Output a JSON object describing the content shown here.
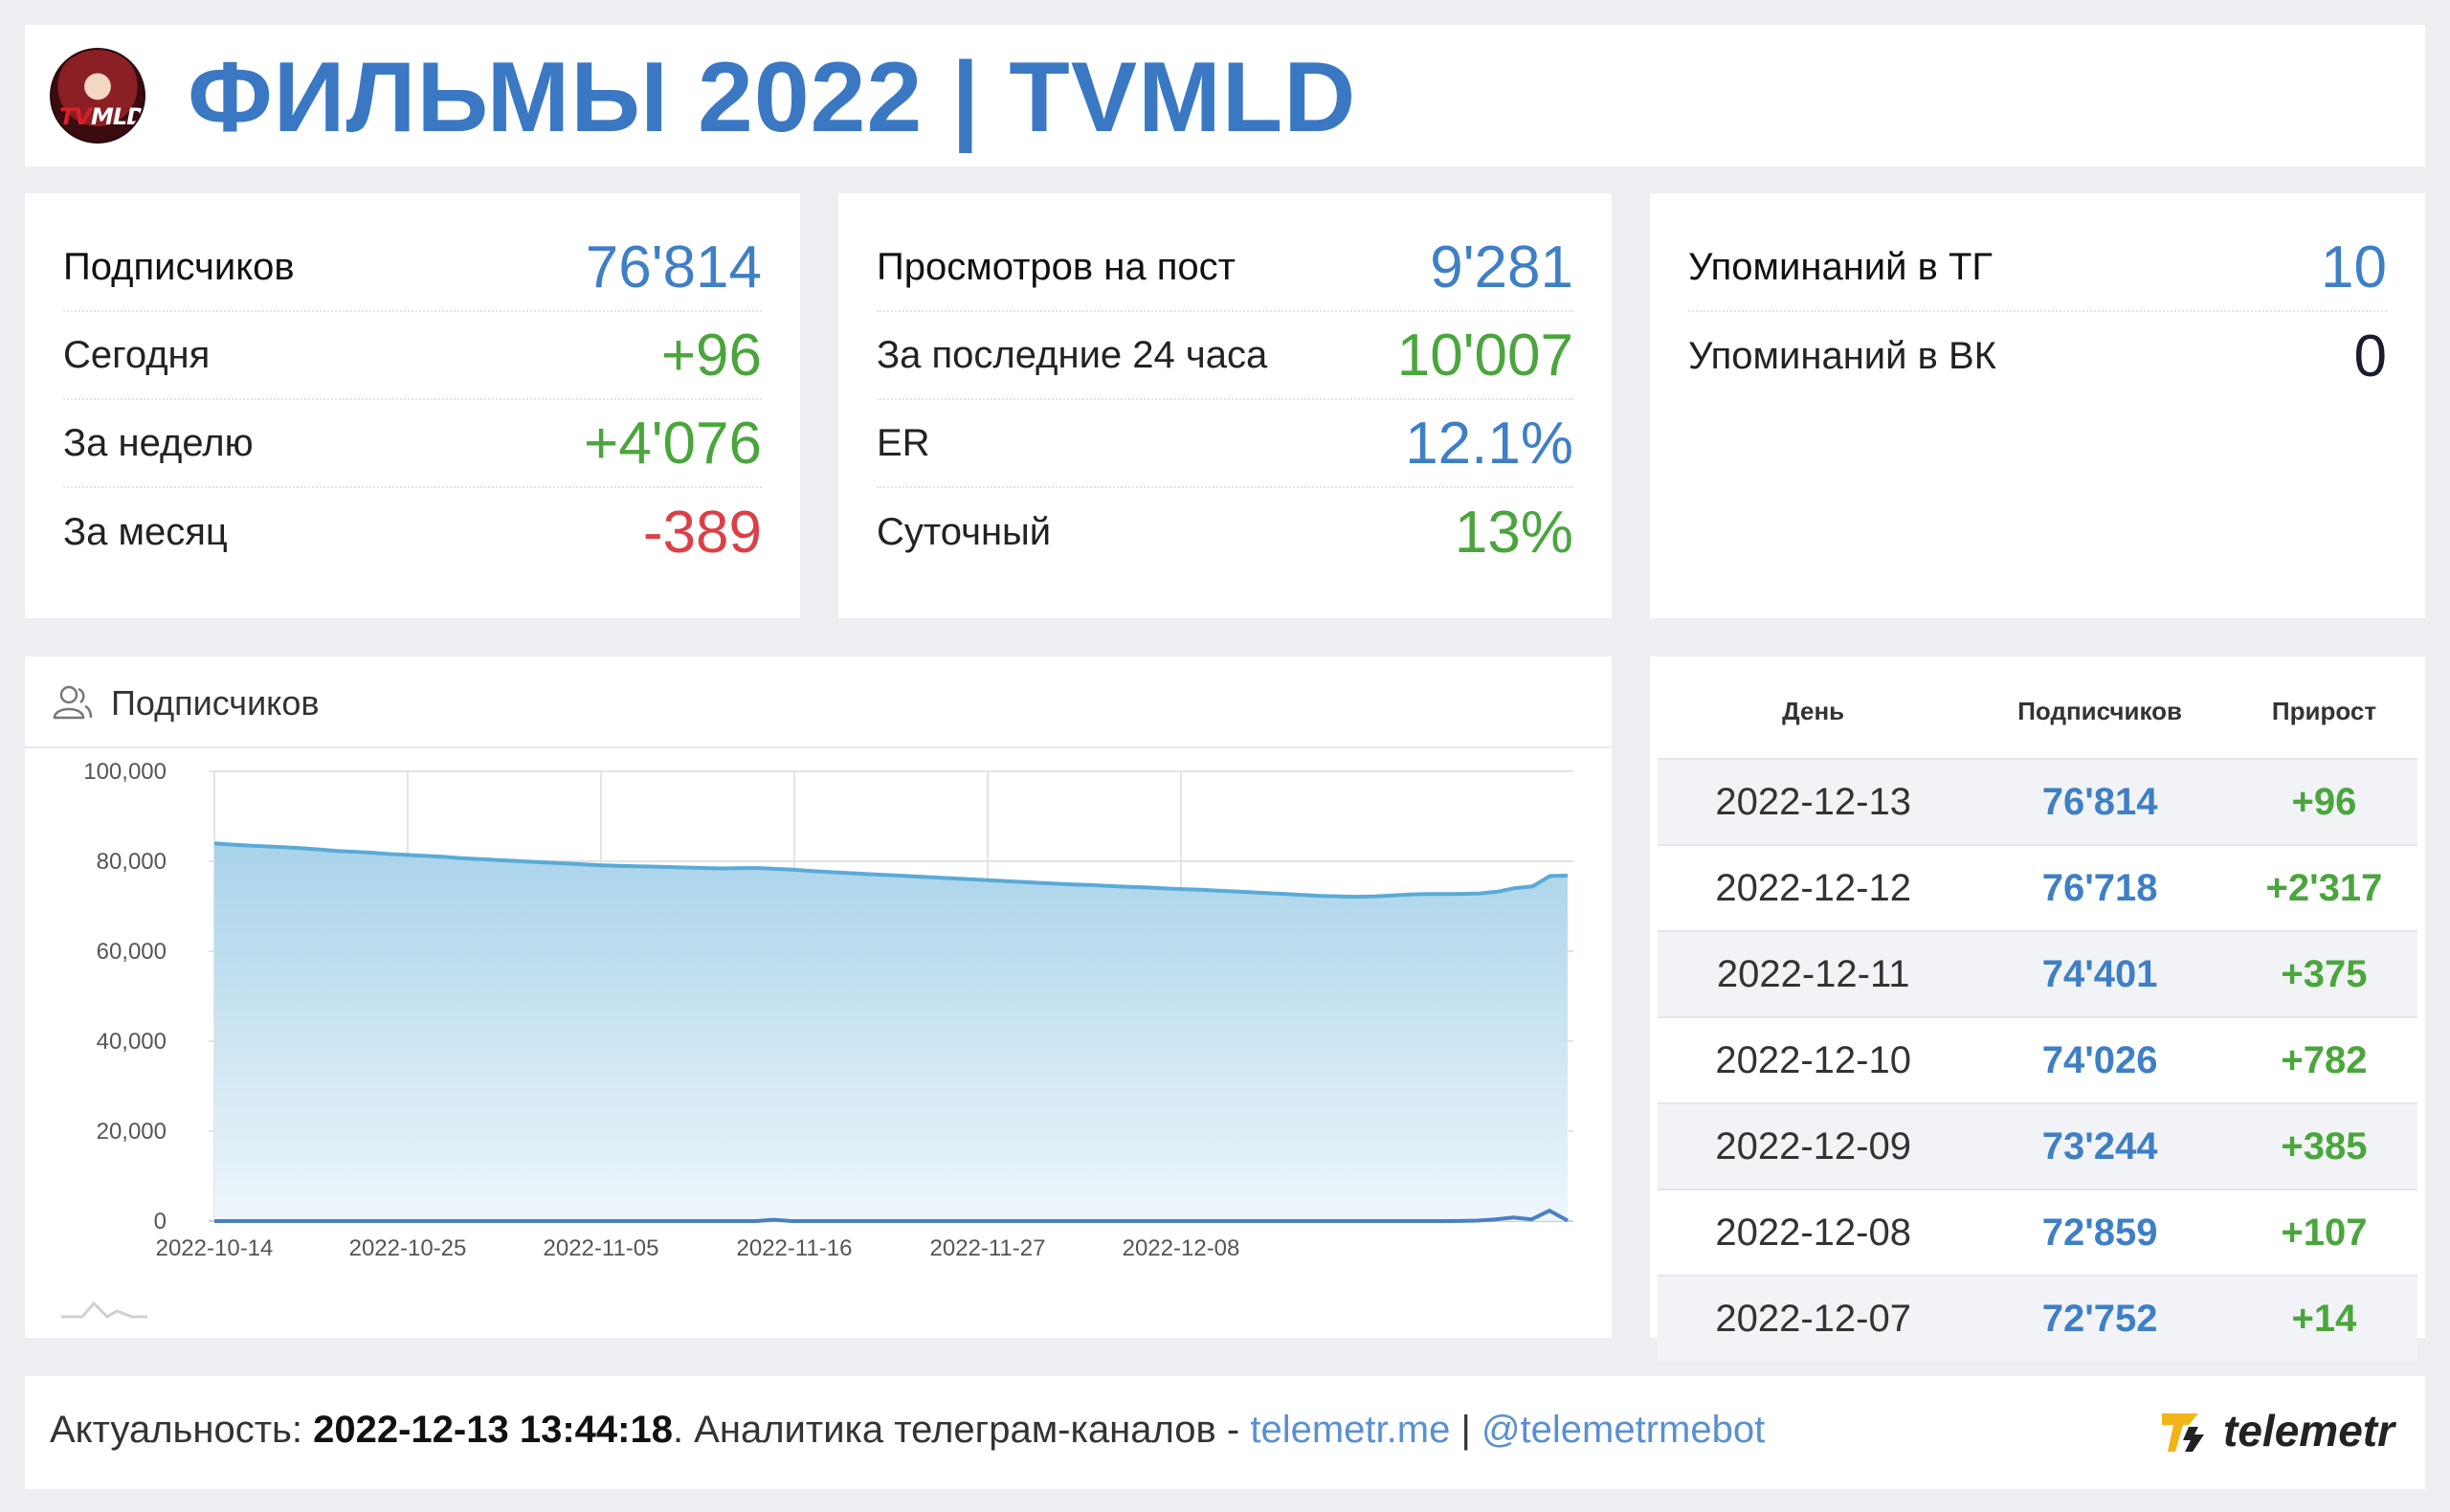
{
  "header": {
    "title": "ФИЛЬМЫ 2022 | TVMLD",
    "avatar_text_a": "TV",
    "avatar_text_b": "MLD"
  },
  "stats": {
    "subscribers": {
      "label": "Подписчиков",
      "value": "76'814",
      "rows": [
        {
          "label": "Сегодня",
          "value": "+96",
          "tone": "green"
        },
        {
          "label": "За неделю",
          "value": "+4'076",
          "tone": "green"
        },
        {
          "label": "За месяц",
          "value": "-389",
          "tone": "red"
        }
      ]
    },
    "views": {
      "label": "Просмотров на пост",
      "value": "9'281",
      "rows": [
        {
          "label": "За последние 24 часа",
          "value": "10'007",
          "tone": "green"
        },
        {
          "label": "ER",
          "value": "12.1%",
          "tone": "blue"
        },
        {
          "label": "Суточный",
          "value": "13%",
          "tone": "green"
        }
      ]
    },
    "mentions": {
      "tg_label": "Упоминаний в ТГ",
      "tg_value": "10",
      "vk_label": "Упоминаний в ВК",
      "vk_value": "0"
    }
  },
  "chart": {
    "title": "Подписчиков",
    "icon": "users-icon"
  },
  "chart_data": {
    "type": "area",
    "title": "Подписчиков",
    "ylim": [
      0,
      100000
    ],
    "yticks": [
      0,
      20000,
      40000,
      60000,
      80000,
      100000
    ],
    "ytick_labels": [
      "0",
      "20,000",
      "40,000",
      "60,000",
      "80,000",
      "100,000"
    ],
    "xticks": [
      "2022-10-14",
      "2022-10-25",
      "2022-11-05",
      "2022-11-16",
      "2022-11-27",
      "2022-12-08"
    ],
    "grid": true,
    "series": [
      {
        "values": [
          84000,
          83700,
          83500,
          83300,
          83100,
          82900,
          82600,
          82300,
          82100,
          81900,
          81600,
          81400,
          81200,
          81000,
          80700,
          80500,
          80300,
          80100,
          79900,
          79700,
          79500,
          79300,
          79100,
          79000,
          78900,
          78800,
          78700,
          78600,
          78500,
          78400,
          78500,
          78500,
          78300,
          78100,
          77800,
          77600,
          77400,
          77200,
          77000,
          76800,
          76600,
          76400,
          76200,
          76000,
          75800,
          75600,
          75400,
          75200,
          75000,
          74800,
          74700,
          74500,
          74300,
          74200,
          74000,
          73800,
          73700,
          73500,
          73300,
          73100,
          72900,
          72700,
          72500,
          72300,
          72200,
          72100,
          72200,
          72400,
          72600,
          72700,
          72700,
          72752,
          72859,
          73244,
          74026,
          74401,
          76718,
          76814
        ]
      },
      {
        "values": [
          0,
          0,
          0,
          0,
          0,
          0,
          0,
          0,
          0,
          0,
          0,
          0,
          0,
          0,
          0,
          0,
          0,
          0,
          0,
          0,
          0,
          0,
          0,
          0,
          0,
          0,
          0,
          0,
          0,
          0,
          0,
          300,
          0,
          0,
          0,
          0,
          0,
          0,
          0,
          0,
          0,
          0,
          0,
          0,
          0,
          0,
          0,
          0,
          0,
          0,
          0,
          0,
          0,
          0,
          0,
          0,
          0,
          0,
          0,
          0,
          0,
          0,
          0,
          0,
          0,
          0,
          0,
          0,
          0,
          14,
          107,
          385,
          782,
          375,
          2317,
          96
        ]
      }
    ],
    "colors": {
      "line": "#5aaad8",
      "fill_top": "#a9d3ea",
      "fill_bottom": "#eef6fb",
      "secondary": "#4a7fc3"
    }
  },
  "table": {
    "headers": [
      "День",
      "Подписчиков",
      "Прирост"
    ],
    "rows": [
      {
        "day": "2022-12-13",
        "subs": "76'814",
        "gain": "+96"
      },
      {
        "day": "2022-12-12",
        "subs": "76'718",
        "gain": "+2'317"
      },
      {
        "day": "2022-12-11",
        "subs": "74'401",
        "gain": "+375"
      },
      {
        "day": "2022-12-10",
        "subs": "74'026",
        "gain": "+782"
      },
      {
        "day": "2022-12-09",
        "subs": "73'244",
        "gain": "+385"
      },
      {
        "day": "2022-12-08",
        "subs": "72'859",
        "gain": "+107"
      },
      {
        "day": "2022-12-07",
        "subs": "72'752",
        "gain": "+14"
      }
    ]
  },
  "footer": {
    "prefix": "Актуальность: ",
    "timestamp": "2022-12-13 13:44:18",
    "middle": ". Аналитика телеграм-каналов - ",
    "site_link": "telemetr.me",
    "separator": " | ",
    "bot_link": "@telemetrmebot",
    "brand": "telemetr"
  },
  "colors": {
    "accent": "#3a78c3",
    "positive": "#4aa63c",
    "negative": "#dc3f46"
  }
}
